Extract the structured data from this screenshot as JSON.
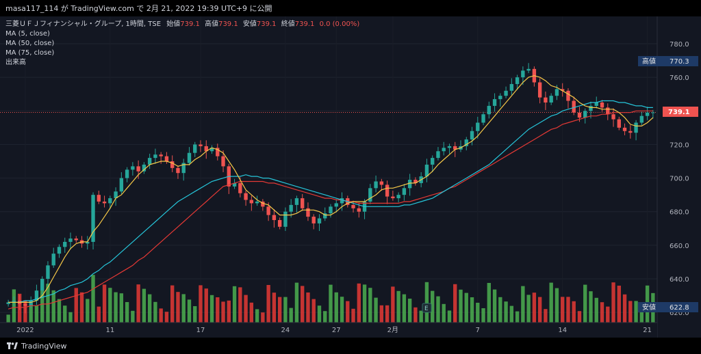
{
  "header": {
    "attribution": "masa117_114 が TradingView.com で 2月 21, 2022 19:39 UTC+9 に公開"
  },
  "legend": {
    "symbol": "三菱ＵＦＪフィナンシャル・グループ, 1時間, TSE",
    "open_label": "始値",
    "open_value": "739.1",
    "high_label": "高値",
    "high_value": "739.1",
    "low_label": "安値",
    "low_value": "739.1",
    "close_label": "終値",
    "close_value": "739.1",
    "change": "0.0 (0.00%)",
    "indicators": [
      "MA (5, close)",
      "MA (50, close)",
      "MA (75, close)",
      "出来高"
    ]
  },
  "price_axis": {
    "ticks": [
      "780.0",
      "760.0",
      "740.0",
      "720.0",
      "700.0",
      "680.0",
      "660.0",
      "640.0",
      "620.0"
    ],
    "high_badge_label": "高値",
    "high_badge_value": "770.3",
    "last_badge_value": "739.1",
    "low_badge_label": "安値",
    "low_badge_value": "622.8"
  },
  "time_axis": {
    "ticks": [
      "2022",
      "11",
      "17",
      "24",
      "27",
      "2月",
      "7",
      "14",
      "21"
    ]
  },
  "event_marker": "E",
  "footer": {
    "brand": "TradingView"
  },
  "colors": {
    "up": "#26a69a",
    "down": "#ef5350",
    "ma5": "#f7c948",
    "ma50": "#26c6da",
    "ma75": "#e53935",
    "vol_up": "#4caf50",
    "vol_down": "#e53935"
  },
  "chart_data": {
    "type": "candlestick",
    "timeframe": "1時間",
    "ylim": [
      620,
      790
    ],
    "close": [
      626,
      627,
      625,
      624,
      627,
      633,
      640,
      648,
      655,
      659,
      662,
      664,
      663,
      661,
      662,
      690,
      686,
      685,
      688,
      692,
      700,
      705,
      707,
      704,
      708,
      712,
      714,
      713,
      710,
      706,
      703,
      709,
      715,
      720,
      719,
      716,
      718,
      713,
      707,
      695,
      697,
      691,
      687,
      685,
      686,
      683,
      678,
      675,
      671,
      680,
      684,
      688,
      682,
      677,
      673,
      676,
      679,
      683,
      685,
      688,
      684,
      682,
      680,
      686,
      694,
      698,
      696,
      689,
      688,
      690,
      694,
      699,
      697,
      701,
      708,
      712,
      716,
      718,
      719,
      717,
      719,
      723,
      728,
      733,
      738,
      743,
      747,
      749,
      752,
      756,
      760,
      764,
      765,
      757,
      748,
      745,
      749,
      753,
      752,
      746,
      739,
      736,
      740,
      743,
      745,
      742,
      738,
      735,
      730,
      728,
      727,
      733,
      737,
      739,
      739.1
    ],
    "ma5": [
      626,
      626,
      626,
      626,
      626,
      627,
      630,
      635,
      641,
      647,
      653,
      658,
      661,
      662,
      662,
      668,
      672,
      677,
      682,
      688,
      690,
      694,
      698,
      702,
      705,
      708,
      709,
      710,
      710,
      709,
      707,
      708,
      708,
      711,
      713,
      716,
      718,
      717,
      715,
      710,
      705,
      699,
      693,
      690,
      687,
      685,
      684,
      681,
      678,
      678,
      678,
      679,
      681,
      681,
      681,
      680,
      678,
      678,
      680,
      683,
      685,
      686,
      686,
      686,
      688,
      690,
      693,
      694,
      694,
      695,
      696,
      697,
      697,
      699,
      701,
      704,
      708,
      711,
      714,
      717,
      718,
      720,
      722,
      725,
      729,
      733,
      737,
      741,
      745,
      749,
      753,
      757,
      760,
      761,
      760,
      758,
      755,
      754,
      752,
      750,
      748,
      745,
      743,
      742,
      742,
      741,
      741,
      741,
      739,
      736,
      732,
      731,
      731,
      733,
      736
    ],
    "ma50": [
      626,
      626,
      626,
      627,
      627,
      628,
      629,
      630,
      631,
      633,
      634,
      636,
      637,
      638,
      640,
      643,
      645,
      648,
      650,
      653,
      656,
      659,
      662,
      665,
      668,
      671,
      674,
      677,
      680,
      683,
      686,
      688,
      690,
      692,
      694,
      696,
      698,
      699,
      700,
      701,
      701,
      701,
      702,
      701,
      701,
      700,
      700,
      699,
      698,
      697,
      696,
      695,
      694,
      693,
      692,
      691,
      690,
      689,
      688,
      687,
      686,
      685,
      684,
      683,
      683,
      683,
      683,
      683,
      683,
      683,
      684,
      684,
      685,
      686,
      687,
      688,
      690,
      692,
      694,
      696,
      698,
      700,
      702,
      704,
      706,
      708,
      711,
      714,
      717,
      720,
      723,
      726,
      729,
      731,
      733,
      735,
      737,
      738,
      740,
      741,
      742,
      743,
      744,
      745,
      745,
      746,
      746,
      746,
      745,
      745,
      744,
      743,
      743,
      742,
      742
    ],
    "ma75": [
      622,
      623,
      623,
      623,
      624,
      624,
      625,
      625,
      626,
      627,
      628,
      629,
      630,
      631,
      632,
      634,
      636,
      638,
      640,
      642,
      644,
      646,
      648,
      651,
      653,
      656,
      659,
      662,
      665,
      668,
      671,
      674,
      677,
      680,
      683,
      686,
      689,
      692,
      695,
      696,
      697,
      698,
      698,
      698,
      698,
      698,
      697,
      697,
      696,
      695,
      694,
      693,
      692,
      691,
      690,
      689,
      688,
      688,
      687,
      687,
      686,
      686,
      685,
      685,
      685,
      685,
      685,
      685,
      685,
      685,
      686,
      686,
      687,
      688,
      689,
      690,
      691,
      692,
      694,
      695,
      697,
      699,
      701,
      703,
      705,
      707,
      709,
      711,
      713,
      715,
      717,
      719,
      721,
      723,
      725,
      727,
      729,
      730,
      732,
      733,
      734,
      735,
      736,
      737,
      737,
      738,
      738,
      739,
      739,
      739,
      739,
      740,
      740,
      740,
      740
    ]
  }
}
